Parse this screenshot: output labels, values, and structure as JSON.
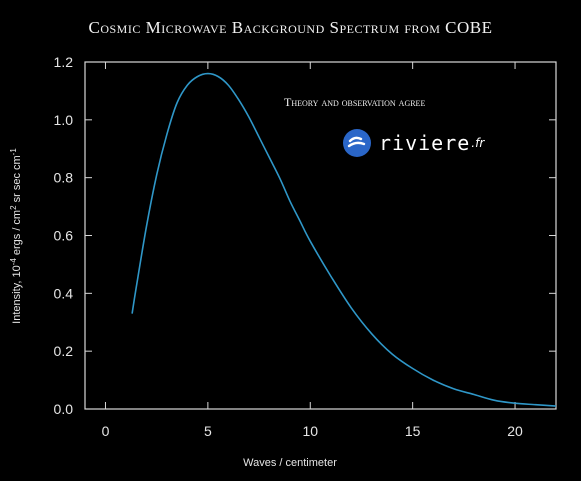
{
  "chart_data": {
    "type": "line",
    "title": "Cosmic Microwave Background Spectrum from COBE",
    "annotation": "Theory and observation agree",
    "xlabel": "Waves / centimeter",
    "ylabel_parts": [
      "Intensity, 10",
      "-4",
      " ergs / cm",
      "2",
      " sr sec cm",
      "-1"
    ],
    "xlim": [
      -1,
      22
    ],
    "ylim": [
      0,
      1.2
    ],
    "xticks": [
      0,
      5,
      10,
      15,
      20
    ],
    "xtick_labels": [
      "0",
      "5",
      "10",
      "15",
      "20"
    ],
    "yticks": [
      0.0,
      0.2,
      0.4,
      0.6,
      0.8,
      1.0,
      1.2
    ],
    "ytick_labels": [
      "0.0",
      "0.2",
      "0.4",
      "0.6",
      "0.8",
      "1.0",
      "1.2"
    ],
    "line_color": "#2f97c8",
    "series": [
      {
        "x": [
          1.3,
          1.5,
          2,
          2.5,
          3,
          3.5,
          4,
          4.5,
          5,
          5.5,
          6,
          6.5,
          7,
          7.5,
          8,
          8.5,
          9,
          9.5,
          10,
          11,
          12,
          13,
          14,
          15,
          16,
          17,
          18,
          19,
          20,
          21,
          22
        ],
        "y": [
          0.33,
          0.42,
          0.63,
          0.81,
          0.95,
          1.06,
          1.12,
          1.15,
          1.16,
          1.15,
          1.12,
          1.07,
          1.01,
          0.94,
          0.87,
          0.8,
          0.72,
          0.65,
          0.58,
          0.46,
          0.35,
          0.26,
          0.19,
          0.14,
          0.1,
          0.07,
          0.05,
          0.03,
          0.02,
          0.015,
          0.01
        ]
      }
    ]
  },
  "watermark": {
    "text": "riviere",
    "suffix": ".fr"
  }
}
